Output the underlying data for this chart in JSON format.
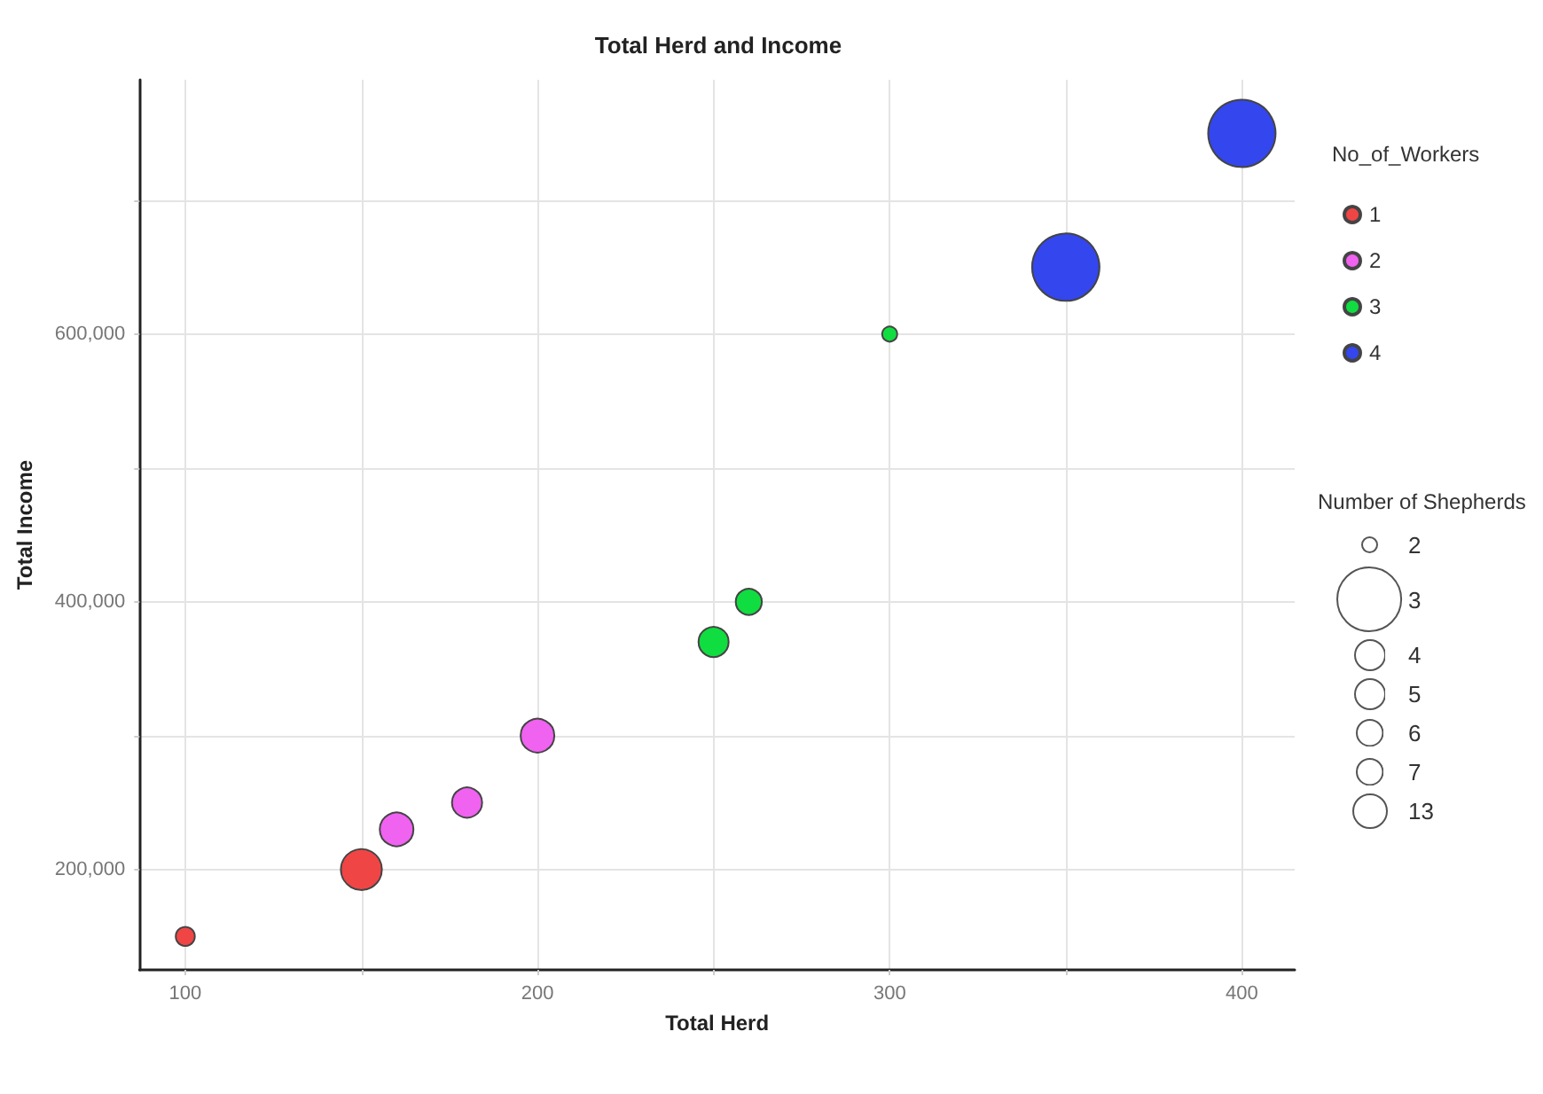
{
  "chart_data": {
    "type": "bubble",
    "title": "Total Herd and Income",
    "xlabel": "Total Herd",
    "ylabel": "Total Income",
    "legend_title": "No_of_Workers",
    "annotations": [
      "Number of Shepherds"
    ],
    "xlim": [
      87,
      415
    ],
    "xticks": [
      100,
      {
        "value": 150,
        "label": null
      },
      200,
      {
        "value": 250,
        "label": null
      },
      300,
      {
        "value": 350,
        "label": null
      },
      400
    ],
    "ylim": [
      125000,
      790000
    ],
    "yticks": [
      {
        "value": 200000,
        "label": "200,000"
      },
      {
        "value": 300000,
        "label": null
      },
      {
        "value": 400000,
        "label": "400,000"
      },
      {
        "value": 500000,
        "label": null
      },
      {
        "value": 600000,
        "label": "600,000"
      },
      {
        "value": 700000,
        "label": null
      }
    ],
    "grid": true,
    "legend": "right",
    "marker": "circle",
    "size_legend": [
      {
        "value": 0.05,
        "label": "2"
      },
      {
        "value": 0.9,
        "label": "3"
      },
      {
        "value": 0.2,
        "label": "4"
      },
      {
        "value": 0.2,
        "label": "5"
      },
      {
        "value": 0.15,
        "label": "6"
      },
      {
        "value": 0.15,
        "label": "7"
      },
      {
        "value": 0.25,
        "label": "13"
      }
    ],
    "series": [
      {
        "name": "1",
        "color": "#f04545",
        "x": [
          100,
          150
        ],
        "values": [
          150000,
          200000
        ],
        "sizes": [
          0.08,
          0.37
        ]
      },
      {
        "name": "2",
        "color": "#f062f0",
        "x": [
          160,
          180,
          200
        ],
        "values": [
          230000,
          250000,
          300000
        ],
        "sizes": [
          0.25,
          0.2,
          0.25
        ]
      },
      {
        "name": "3",
        "color": "#10dd40",
        "x": [
          250,
          260,
          300
        ],
        "values": [
          370000,
          400000,
          600000
        ],
        "sizes": [
          0.2,
          0.15,
          0.05
        ]
      },
      {
        "name": "4",
        "color": "#3446ee",
        "x": [
          350,
          400
        ],
        "values": [
          650000,
          750000
        ],
        "sizes": [
          1,
          1
        ]
      }
    ]
  }
}
